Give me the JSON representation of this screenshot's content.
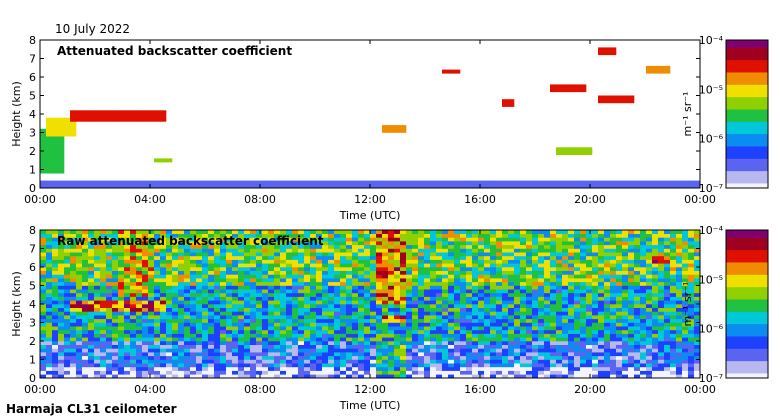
{
  "header": {
    "date": "10 July 2022"
  },
  "footer": {
    "caption": "Harmaja CL31 ceilometer"
  },
  "colors": {
    "cmap": [
      "#f4f4ff",
      "#b8b8f0",
      "#5a64f0",
      "#1e40ff",
      "#0a8cf0",
      "#00c8d8",
      "#20c040",
      "#90d000",
      "#f0e000",
      "#f08c00",
      "#e01000",
      "#a00020",
      "#800070"
    ]
  },
  "chart_data": [
    {
      "type": "heatmap",
      "title": "Attenuated backscatter coefficient",
      "xlabel": "Time (UTC)",
      "ylabel": "Height (km)",
      "xlim": [
        0,
        24
      ],
      "ylim": [
        0,
        8
      ],
      "xticks": [
        "00:00",
        "04:00",
        "08:00",
        "12:00",
        "16:00",
        "20:00",
        "00:00"
      ],
      "yticks": [
        "0",
        "1",
        "2",
        "3",
        "4",
        "5",
        "6",
        "7",
        "8"
      ],
      "colorbar": {
        "label": "m⁻¹ sr⁻¹",
        "ticks": [
          "10⁻⁷",
          "10⁻⁶",
          "10⁻⁵",
          "10⁻⁴"
        ],
        "range_log10": [
          -7,
          -4
        ]
      },
      "features": [
        {
          "t0": 0.0,
          "t1": 24.0,
          "h0": 0.0,
          "h1": 0.4,
          "log10": -6.6
        },
        {
          "t0": 0.0,
          "t1": 0.8,
          "h0": 0.8,
          "h1": 3.2,
          "log10": -5.6
        },
        {
          "t0": 0.3,
          "t1": 1.2,
          "h0": 2.8,
          "h1": 3.7,
          "log10": -5.0
        },
        {
          "t0": 1.2,
          "t1": 4.5,
          "h0": 3.6,
          "h1": 4.2,
          "log10": -4.6
        },
        {
          "t0": 4.1,
          "t1": 4.9,
          "h0": 1.4,
          "h1": 1.6,
          "log10": -5.3
        },
        {
          "t0": 12.4,
          "t1": 13.3,
          "h0": 3.0,
          "h1": 3.4,
          "log10": -4.7
        },
        {
          "t0": 14.7,
          "t1": 15.2,
          "h0": 6.2,
          "h1": 6.4,
          "log10": -4.6
        },
        {
          "t0": 16.9,
          "t1": 17.2,
          "h0": 4.4,
          "h1": 4.8,
          "log10": -4.6
        },
        {
          "t0": 18.6,
          "t1": 19.9,
          "h0": 5.2,
          "h1": 5.5,
          "log10": -4.6
        },
        {
          "t0": 20.2,
          "t1": 21.7,
          "h0": 4.6,
          "h1": 4.9,
          "log10": -4.6
        },
        {
          "t0": 20.3,
          "t1": 20.9,
          "h0": 7.3,
          "h1": 7.5,
          "log10": -4.6
        },
        {
          "t0": 22.0,
          "t1": 22.9,
          "h0": 6.3,
          "h1": 6.6,
          "log10": -4.7
        },
        {
          "t0": 18.8,
          "t1": 20.0,
          "h0": 1.8,
          "h1": 2.2,
          "log10": -5.2
        }
      ]
    },
    {
      "type": "heatmap",
      "title": "Raw attenuated backscatter coefficient",
      "xlabel": "Time (UTC)",
      "ylabel": "Height (km)",
      "xlim": [
        0,
        24
      ],
      "ylim": [
        0,
        8
      ],
      "xticks": [
        "00:00",
        "04:00",
        "08:00",
        "12:00",
        "16:00",
        "20:00",
        "00:00"
      ],
      "yticks": [
        "0",
        "1",
        "2",
        "3",
        "4",
        "5",
        "6",
        "7",
        "8"
      ],
      "colorbar": {
        "label": "m⁻¹ sr⁻¹",
        "ticks": [
          "10⁻⁷",
          "10⁻⁶",
          "10⁻⁵",
          "10⁻⁴"
        ],
        "range_log10": [
          -7,
          -4
        ]
      },
      "features": [
        {
          "t0": 0.0,
          "t1": 24.0,
          "h0": 0.0,
          "h1": 0.6,
          "log10": -6.8
        },
        {
          "t0": 0.0,
          "t1": 24.0,
          "h0": 0.6,
          "h1": 2.0,
          "log10": -6.3
        },
        {
          "t0": 0.0,
          "t1": 24.0,
          "h0": 2.0,
          "h1": 5.0,
          "log10": -5.8
        },
        {
          "t0": 0.0,
          "t1": 24.0,
          "h0": 5.0,
          "h1": 8.0,
          "log10": -5.4
        },
        {
          "t0": 2.8,
          "t1": 4.2,
          "h0": 4.5,
          "h1": 8.0,
          "log10": -5.0
        },
        {
          "t0": 12.2,
          "t1": 13.4,
          "h0": 4.0,
          "h1": 8.0,
          "log10": -4.7
        },
        {
          "t0": 12.2,
          "t1": 13.4,
          "h0": 0.0,
          "h1": 4.0,
          "log10": -5.7
        },
        {
          "t0": 1.2,
          "t1": 4.5,
          "h0": 3.7,
          "h1": 4.1,
          "log10": -4.6
        },
        {
          "t0": 12.4,
          "t1": 13.2,
          "h0": 3.0,
          "h1": 3.3,
          "log10": -4.6
        },
        {
          "t0": 22.0,
          "t1": 22.9,
          "h0": 6.3,
          "h1": 6.5,
          "log10": -4.7
        }
      ]
    }
  ]
}
